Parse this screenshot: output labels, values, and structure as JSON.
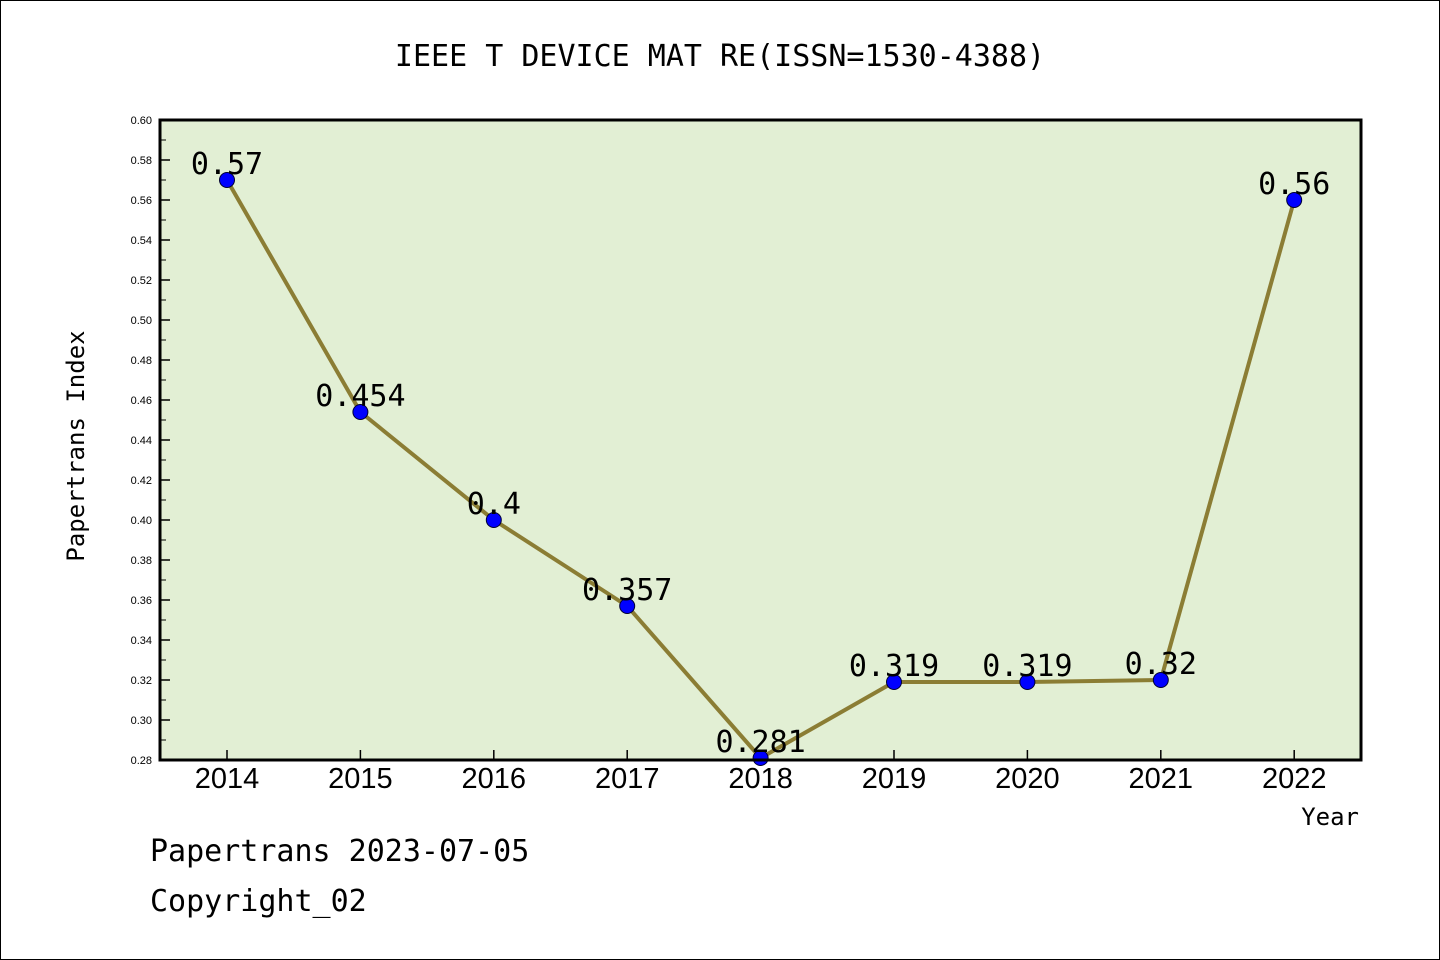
{
  "chart_data": {
    "type": "line",
    "title": "IEEE T DEVICE MAT RE(ISSN=1530-4388)",
    "xlabel": "Year",
    "ylabel": "Papertrans Index",
    "categories": [
      "2014",
      "2015",
      "2016",
      "2017",
      "2018",
      "2019",
      "2020",
      "2021",
      "2022"
    ],
    "values": [
      0.57,
      0.454,
      0.4,
      0.357,
      0.281,
      0.319,
      0.319,
      0.32,
      0.56
    ],
    "value_labels": [
      "0.57",
      "0.454",
      "0.4",
      "0.357",
      "0.281",
      "0.319",
      "0.319",
      "0.32",
      "0.56"
    ],
    "ylim": [
      0.28,
      0.6
    ],
    "yticks": [
      "0.28",
      "0.30",
      "0.32",
      "0.34",
      "0.36",
      "0.38",
      "0.40",
      "0.42",
      "0.44",
      "0.46",
      "0.48",
      "0.50",
      "0.52",
      "0.54",
      "0.56",
      "0.58",
      "0.60"
    ],
    "grid": false,
    "colors": {
      "plot_background": "#e2efd4",
      "line": "#8b7d34",
      "marker": "#0000ff"
    }
  },
  "footer": {
    "line1": "Papertrans 2023-07-05",
    "line2": "Copyright_02"
  }
}
